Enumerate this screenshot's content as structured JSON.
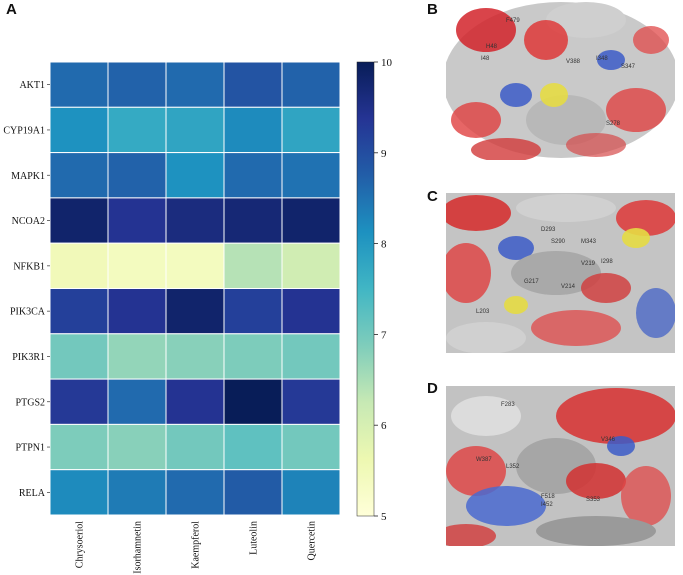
{
  "panels": {
    "a": "A",
    "b": "B",
    "c": "C",
    "d": "D"
  },
  "chart_data": {
    "type": "heatmap",
    "title": "",
    "rows": [
      "AKT1",
      "CYP19A1",
      "MAPK1",
      "NCOA2",
      "NFKB1",
      "PIK3CA",
      "PIK3R1",
      "PTGS2",
      "PTPN1",
      "RELA"
    ],
    "columns": [
      "Chrysoeriol",
      "Isorhamnetin",
      "Kaempferol",
      "Luteolin",
      "Quercetin"
    ],
    "values": [
      [
        8.6,
        8.7,
        8.6,
        8.9,
        8.7
      ],
      [
        8.1,
        7.7,
        7.8,
        8.2,
        7.8
      ],
      [
        8.6,
        8.7,
        8.1,
        8.6,
        8.5
      ],
      [
        9.8,
        9.4,
        9.6,
        9.7,
        9.8
      ],
      [
        5.5,
        5.4,
        5.4,
        6.4,
        6.1
      ],
      [
        9.2,
        9.4,
        9.8,
        9.2,
        9.4
      ],
      [
        7.0,
        6.7,
        6.8,
        6.9,
        7.0
      ],
      [
        9.3,
        8.6,
        9.4,
        10.0,
        9.3
      ],
      [
        6.9,
        6.8,
        7.0,
        7.2,
        7.0
      ],
      [
        8.2,
        8.4,
        8.6,
        8.8,
        8.3
      ]
    ],
    "colorbar": {
      "min": 5,
      "max": 10,
      "ticks": [
        "5",
        "6",
        "7",
        "8",
        "9",
        "10"
      ],
      "colormap": "YlGnBu"
    }
  },
  "docking_panels": [
    {
      "panel": "B",
      "residues": [
        "F479",
        "H48",
        "I48",
        "V388",
        "S347",
        "I348",
        "S278"
      ]
    },
    {
      "panel": "C",
      "residues": [
        "D293",
        "S290",
        "M343",
        "I298",
        "V219",
        "G217",
        "L203",
        "V214"
      ]
    },
    {
      "panel": "D",
      "residues": [
        "F283",
        "V346",
        "W387",
        "L352",
        "F518",
        "I452",
        "S353"
      ]
    }
  ]
}
